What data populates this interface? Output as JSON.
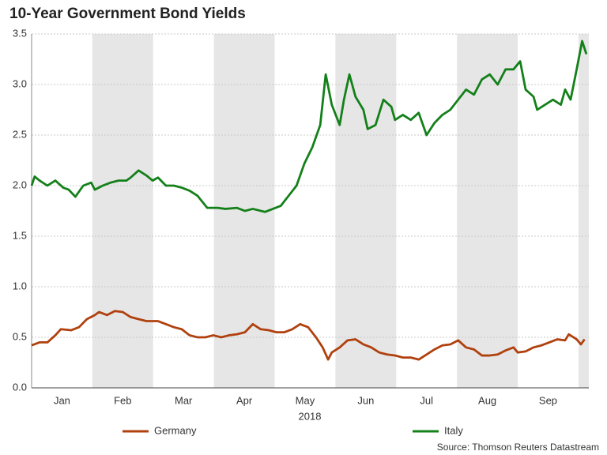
{
  "chart_data": {
    "type": "line",
    "title": "10-Year Government Bond Yields",
    "x_label": "2018",
    "source": "Source: Thomson Reuters Datastream",
    "xlim": [
      0,
      9.17
    ],
    "xticks": [
      {
        "value": 0.5,
        "label": "Jan"
      },
      {
        "value": 1.5,
        "label": "Feb"
      },
      {
        "value": 2.5,
        "label": "Mar"
      },
      {
        "value": 3.5,
        "label": "Apr"
      },
      {
        "value": 4.5,
        "label": "May"
      },
      {
        "value": 5.5,
        "label": "Jun"
      },
      {
        "value": 6.5,
        "label": "Jul"
      },
      {
        "value": 7.5,
        "label": "Aug"
      },
      {
        "value": 8.5,
        "label": "Sep"
      }
    ],
    "ylim": [
      0,
      3.5
    ],
    "yticks": [
      {
        "value": 0,
        "label": "0.0"
      },
      0.5,
      {
        "value": 1,
        "label": "1.0"
      },
      1.5,
      {
        "value": 2,
        "label": "2.0"
      },
      2.5,
      {
        "value": 3,
        "label": "3.0"
      },
      3.5
    ],
    "grid": true,
    "legend": "bottom",
    "series": [
      {
        "name": "Germany",
        "color": "#b0410e",
        "x": [
          0,
          0.13,
          0.26,
          0.39,
          0.48,
          0.65,
          0.78,
          0.91,
          1.04,
          1.11,
          1.24,
          1.37,
          1.5,
          1.63,
          1.76,
          1.89,
          2.08,
          2.21,
          2.34,
          2.47,
          2.6,
          2.73,
          2.86,
          2.99,
          3.12,
          3.25,
          3.38,
          3.51,
          3.64,
          3.77,
          3.9,
          4.03,
          4.16,
          4.29,
          4.42,
          4.55,
          4.68,
          4.79,
          4.88,
          4.94,
          5.07,
          5.2,
          5.33,
          5.46,
          5.59,
          5.72,
          5.85,
          5.98,
          6.11,
          6.24,
          6.37,
          6.5,
          6.63,
          6.76,
          6.89,
          7.02,
          7.15,
          7.28,
          7.41,
          7.54,
          7.67,
          7.8,
          7.93,
          8.0,
          8.13,
          8.26,
          8.39,
          8.52,
          8.65,
          8.78,
          8.84,
          8.97,
          9.04,
          9.1
        ],
        "values": [
          0.42,
          0.45,
          0.45,
          0.52,
          0.58,
          0.57,
          0.6,
          0.68,
          0.72,
          0.75,
          0.72,
          0.76,
          0.75,
          0.7,
          0.68,
          0.66,
          0.66,
          0.63,
          0.6,
          0.58,
          0.52,
          0.5,
          0.5,
          0.52,
          0.5,
          0.52,
          0.53,
          0.55,
          0.63,
          0.58,
          0.57,
          0.55,
          0.55,
          0.58,
          0.63,
          0.6,
          0.5,
          0.4,
          0.28,
          0.35,
          0.4,
          0.47,
          0.48,
          0.43,
          0.4,
          0.35,
          0.33,
          0.32,
          0.3,
          0.3,
          0.28,
          0.33,
          0.38,
          0.42,
          0.43,
          0.47,
          0.4,
          0.38,
          0.32,
          0.32,
          0.33,
          0.37,
          0.4,
          0.35,
          0.36,
          0.4,
          0.42,
          0.45,
          0.48,
          0.47,
          0.53,
          0.48,
          0.43,
          0.48
        ]
      },
      {
        "name": "Italy",
        "color": "#14801a",
        "x": [
          0,
          0.05,
          0.13,
          0.26,
          0.39,
          0.52,
          0.61,
          0.72,
          0.85,
          0.98,
          1.04,
          1.17,
          1.3,
          1.43,
          1.56,
          1.63,
          1.76,
          1.89,
          1.99,
          2.08,
          2.21,
          2.34,
          2.47,
          2.6,
          2.73,
          2.89,
          3.06,
          3.19,
          3.38,
          3.51,
          3.64,
          3.84,
          3.97,
          4.1,
          4.23,
          4.36,
          4.49,
          4.62,
          4.75,
          4.84,
          4.94,
          5.07,
          5.14,
          5.23,
          5.33,
          5.46,
          5.53,
          5.66,
          5.79,
          5.92,
          5.98,
          6.11,
          6.24,
          6.37,
          6.5,
          6.63,
          6.76,
          6.89,
          7.02,
          7.15,
          7.28,
          7.41,
          7.54,
          7.67,
          7.8,
          7.93,
          8.04,
          8.13,
          8.26,
          8.32,
          8.45,
          8.58,
          8.71,
          8.78,
          8.87,
          8.97,
          9.06,
          9.13
        ],
        "values": [
          2.0,
          2.09,
          2.05,
          2.0,
          2.05,
          1.98,
          1.96,
          1.89,
          2.0,
          2.03,
          1.96,
          2.0,
          2.03,
          2.05,
          2.05,
          2.08,
          2.15,
          2.1,
          2.05,
          2.08,
          2.0,
          2.0,
          1.98,
          1.95,
          1.9,
          1.78,
          1.78,
          1.77,
          1.78,
          1.75,
          1.77,
          1.74,
          1.77,
          1.8,
          1.9,
          2.0,
          2.22,
          2.38,
          2.6,
          3.1,
          2.8,
          2.6,
          2.85,
          3.1,
          2.88,
          2.75,
          2.56,
          2.6,
          2.85,
          2.78,
          2.65,
          2.7,
          2.65,
          2.72,
          2.5,
          2.62,
          2.7,
          2.75,
          2.85,
          2.95,
          2.9,
          3.05,
          3.1,
          3.0,
          3.15,
          3.15,
          3.23,
          2.95,
          2.88,
          2.75,
          2.8,
          2.85,
          2.8,
          2.95,
          2.85,
          3.15,
          3.43,
          3.3
        ]
      }
    ]
  }
}
